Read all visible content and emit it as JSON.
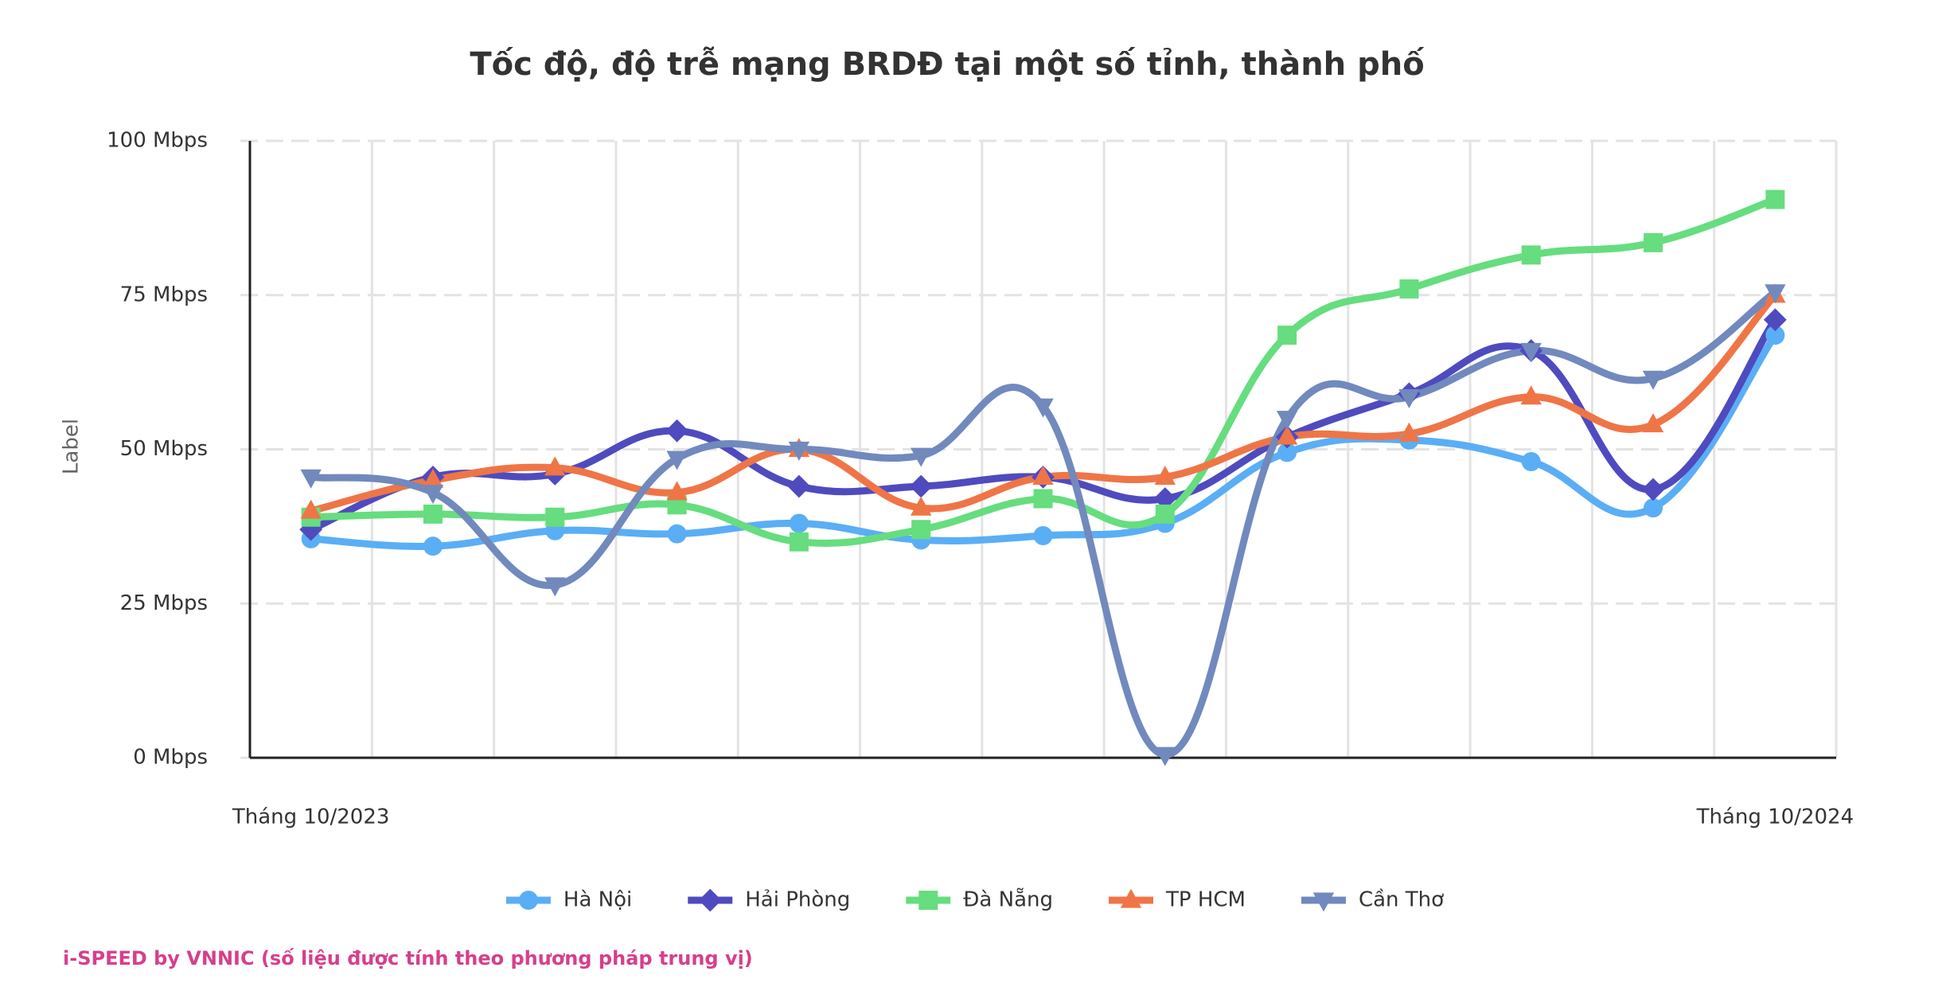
{
  "chart_data": {
    "type": "line",
    "title": "Tốc độ, độ trễ mạng BRDĐ tại một số tỉnh, thành phố",
    "y_label": "Label",
    "categories": [
      "Tháng 10/2023",
      null,
      null,
      null,
      null,
      null,
      null,
      null,
      null,
      null,
      null,
      null,
      "Tháng 10/2024"
    ],
    "series": [
      {
        "name": "Hà Nội",
        "color": "#5aaef5",
        "marker": "circle",
        "values": [
          35.5,
          34.3,
          36.8,
          36.3,
          38,
          35.3,
          36,
          38,
          49.5,
          51.5,
          48,
          40.5,
          68.5
        ]
      },
      {
        "name": "Hải Phòng",
        "color": "#4f4bbf",
        "marker": "diamond",
        "values": [
          37,
          45.5,
          46,
          53,
          44,
          44,
          45.5,
          42,
          52,
          59,
          66,
          43.5,
          71
        ]
      },
      {
        "name": "Đà Nẵng",
        "color": "#66dd7e",
        "marker": "square",
        "values": [
          39,
          39.5,
          39,
          41,
          35,
          37,
          42,
          39.5,
          68.5,
          76,
          81.5,
          83.5,
          90.5
        ]
      },
      {
        "name": "TP HCM",
        "color": "#ef7547",
        "marker": "triangle",
        "values": [
          40,
          45,
          47,
          43,
          50,
          40.5,
          45.5,
          45.5,
          52,
          52.5,
          58.5,
          54,
          75
        ]
      },
      {
        "name": "Cần Thơ",
        "color": "#7189bd",
        "marker": "triangle-down",
        "values": [
          45.5,
          43,
          28,
          48.5,
          50,
          49,
          57,
          0.5,
          55,
          58.5,
          66,
          61.5,
          75.5
        ]
      }
    ],
    "ylim": [
      0,
      100
    ],
    "yticks": [
      {
        "value": 0,
        "label": "0 Mbps"
      },
      {
        "value": 25,
        "label": "25 Mbps"
      },
      {
        "value": 50,
        "label": "50 Mbps"
      },
      {
        "value": 75,
        "label": "75 Mbps"
      },
      {
        "value": 100,
        "label": "100 Mbps"
      }
    ],
    "grid": true,
    "legend": "bottom",
    "footer": "i-SPEED by VNNIC (số liệu được tính theo phương pháp trung vị)",
    "footer_color": "#d63f8c"
  }
}
